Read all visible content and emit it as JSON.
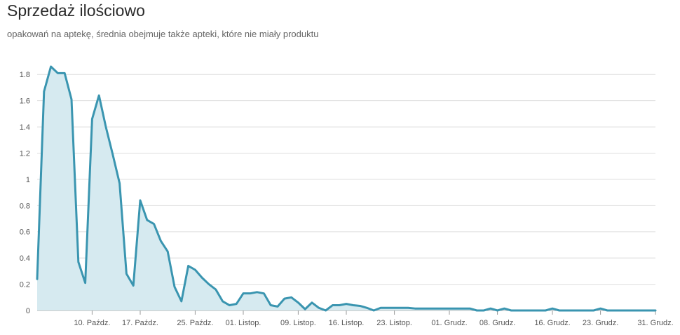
{
  "header": {
    "title": "Sprzedaż ilościowo",
    "subtitle": "opakowań na aptekę, średnia obejmuje także apteki, które nie miały produktu"
  },
  "colors": {
    "line": "#3a95b0",
    "area": "#d6eaf0",
    "grid": "#dddddd",
    "axis": "#999999"
  },
  "chart_data": {
    "type": "area",
    "title": "Sprzedaż ilościowo",
    "subtitle": "opakowań na aptekę, średnia obejmuje także apteki, które nie miały produktu",
    "xlabel": "",
    "ylabel": "",
    "ylim": [
      0,
      1.86
    ],
    "yticks": [
      0,
      0.2,
      0.4,
      0.6,
      0.8,
      1,
      1.2,
      1.4,
      1.6,
      1.8
    ],
    "ytick_labels": [
      "0",
      "0.2",
      "0.4",
      "0.6",
      "0.8",
      "1",
      "1.2",
      "1.4",
      "1.6",
      "1.8"
    ],
    "xlim": [
      "2023-10-02",
      "2023-12-31"
    ],
    "xticks": [
      "2023-10-10",
      "2023-10-17",
      "2023-10-25",
      "2023-11-01",
      "2023-11-09",
      "2023-11-16",
      "2023-11-23",
      "2023-12-01",
      "2023-12-08",
      "2023-12-16",
      "2023-12-23",
      "2023-12-31"
    ],
    "xtick_labels": [
      "10. Paźdz.",
      "17. Paźdz.",
      "25. Paźdz.",
      "01. Listop.",
      "09. Listop.",
      "16. Listop.",
      "23. Listop.",
      "01. Grudz.",
      "08. Grudz.",
      "16. Grudz.",
      "23. Grudz.",
      "31. Grudz."
    ],
    "grid": true,
    "legend": "none",
    "series": [
      {
        "x": [
          "2023-10-02",
          "2023-10-03",
          "2023-10-04",
          "2023-10-05",
          "2023-10-06",
          "2023-10-07",
          "2023-10-08",
          "2023-10-09",
          "2023-10-10",
          "2023-10-11",
          "2023-10-12",
          "2023-10-13",
          "2023-10-14",
          "2023-10-15",
          "2023-10-16",
          "2023-10-17",
          "2023-10-18",
          "2023-10-19",
          "2023-10-20",
          "2023-10-21",
          "2023-10-22",
          "2023-10-23",
          "2023-10-24",
          "2023-10-25",
          "2023-10-26",
          "2023-10-27",
          "2023-10-28",
          "2023-10-29",
          "2023-10-30",
          "2023-10-31",
          "2023-11-01",
          "2023-11-02",
          "2023-11-03",
          "2023-11-04",
          "2023-11-05",
          "2023-11-06",
          "2023-11-07",
          "2023-11-08",
          "2023-11-09",
          "2023-11-10",
          "2023-11-11",
          "2023-11-12",
          "2023-11-13",
          "2023-11-14",
          "2023-11-15",
          "2023-11-16",
          "2023-11-17",
          "2023-11-18",
          "2023-11-19",
          "2023-11-20",
          "2023-11-21",
          "2023-11-22",
          "2023-11-23",
          "2023-11-24",
          "2023-11-25",
          "2023-11-26",
          "2023-11-27",
          "2023-11-28",
          "2023-11-29",
          "2023-11-30",
          "2023-12-01",
          "2023-12-02",
          "2023-12-03",
          "2023-12-04",
          "2023-12-05",
          "2023-12-06",
          "2023-12-07",
          "2023-12-08",
          "2023-12-09",
          "2023-12-10",
          "2023-12-11",
          "2023-12-12",
          "2023-12-13",
          "2023-12-14",
          "2023-12-15",
          "2023-12-16",
          "2023-12-17",
          "2023-12-18",
          "2023-12-19",
          "2023-12-20",
          "2023-12-21",
          "2023-12-22",
          "2023-12-23",
          "2023-12-24",
          "2023-12-25",
          "2023-12-26",
          "2023-12-27",
          "2023-12-28",
          "2023-12-29",
          "2023-12-30",
          "2023-12-31"
        ],
        "values": [
          0.24,
          1.67,
          1.86,
          1.81,
          1.81,
          1.61,
          0.37,
          0.21,
          1.46,
          1.64,
          1.4,
          1.19,
          0.97,
          0.28,
          0.19,
          0.84,
          0.69,
          0.66,
          0.53,
          0.45,
          0.18,
          0.07,
          0.34,
          0.31,
          0.25,
          0.2,
          0.16,
          0.07,
          0.04,
          0.05,
          0.13,
          0.13,
          0.14,
          0.13,
          0.04,
          0.03,
          0.09,
          0.1,
          0.06,
          0.01,
          0.06,
          0.02,
          0.0,
          0.04,
          0.04,
          0.05,
          0.04,
          0.035,
          0.02,
          0.0,
          0.02,
          0.02,
          0.02,
          0.02,
          0.02,
          0.015,
          0.015,
          0.015,
          0.015,
          0.015,
          0.015,
          0.015,
          0.015,
          0.015,
          0.0,
          0.0,
          0.015,
          0.0,
          0.015,
          0.0,
          0.0,
          0.0,
          0.0,
          0.0,
          0.0,
          0.015,
          0.0,
          0.0,
          0.0,
          0.0,
          0.0,
          0.0,
          0.015,
          0.0,
          0.0,
          0.0,
          0.0,
          0.0,
          0.0,
          0.0,
          0.0
        ]
      }
    ]
  }
}
